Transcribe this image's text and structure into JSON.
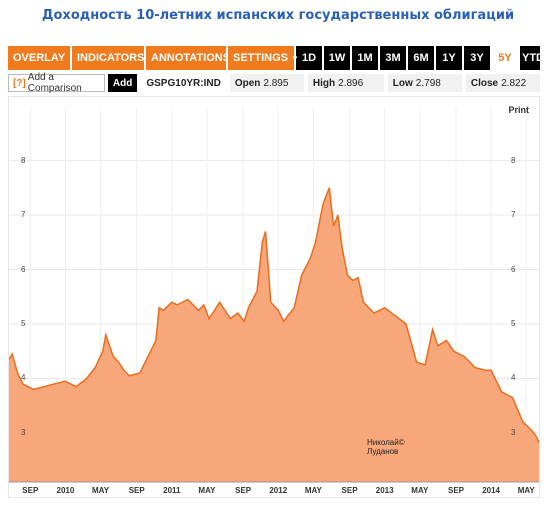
{
  "title": "Доходность 10-летних испанских государственных облигаций",
  "toolbar": {
    "menus": [
      "OVERLAY",
      "INDICATORS",
      "ANNOTATIONS",
      "SETTINGS"
    ],
    "ranges": [
      "1D",
      "1W",
      "1M",
      "3M",
      "6M",
      "1Y",
      "3Y",
      "5Y",
      "YTD"
    ],
    "active_range": "5Y",
    "accent": "#f07a1e"
  },
  "infobar": {
    "compare_hint": "[?]",
    "compare_label": "Add a Comparison",
    "add_label": "Add",
    "ticker": "GSPG10YR:IND",
    "open_label": "Open",
    "open_value": "2.895",
    "high_label": "High",
    "high_value": "2.896",
    "low_label": "Low",
    "low_value": "2.798",
    "close_label": "Close",
    "close_value": "2.822"
  },
  "print_label": "Print",
  "watermark": {
    "line1": "Николай",
    "line2": "Луданов"
  },
  "chart_data": {
    "type": "area",
    "title": "Доходность 10-летних испанских государственных облигаций",
    "xlabel": "",
    "ylabel": "",
    "ylim": [
      2.1,
      8.8
    ],
    "yticks": [
      3,
      4,
      5,
      6,
      7,
      8
    ],
    "xlim": [
      2009.47,
      2014.45
    ],
    "xticks": [
      {
        "x": 2009.67,
        "label": "SEP"
      },
      {
        "x": 2010.0,
        "label": "2010"
      },
      {
        "x": 2010.33,
        "label": "MAY"
      },
      {
        "x": 2010.67,
        "label": "SEP"
      },
      {
        "x": 2011.0,
        "label": "2011"
      },
      {
        "x": 2011.33,
        "label": "MAY"
      },
      {
        "x": 2011.67,
        "label": "SEP"
      },
      {
        "x": 2012.0,
        "label": "2012"
      },
      {
        "x": 2012.33,
        "label": "MAY"
      },
      {
        "x": 2012.67,
        "label": "SEP"
      },
      {
        "x": 2013.0,
        "label": "2013"
      },
      {
        "x": 2013.33,
        "label": "MAY"
      },
      {
        "x": 2013.67,
        "label": "SEP"
      },
      {
        "x": 2014.0,
        "label": "2014"
      },
      {
        "x": 2014.33,
        "label": "MAY"
      }
    ],
    "grid": true,
    "fill_color": "#f8a77b",
    "line_color": "#ea6c1c",
    "x": [
      2009.47,
      2009.5,
      2009.55,
      2009.6,
      2009.7,
      2009.8,
      2009.9,
      2010.0,
      2010.1,
      2010.2,
      2010.28,
      2010.35,
      2010.38,
      2010.45,
      2010.5,
      2010.55,
      2010.6,
      2010.7,
      2010.8,
      2010.85,
      2010.88,
      2010.92,
      2011.0,
      2011.05,
      2011.15,
      2011.25,
      2011.3,
      2011.35,
      2011.45,
      2011.55,
      2011.62,
      2011.68,
      2011.72,
      2011.8,
      2011.85,
      2011.88,
      2011.93,
      2012.0,
      2012.05,
      2012.15,
      2012.22,
      2012.3,
      2012.35,
      2012.42,
      2012.48,
      2012.52,
      2012.56,
      2012.6,
      2012.65,
      2012.7,
      2012.75,
      2012.8,
      2012.9,
      2013.0,
      2013.1,
      2013.2,
      2013.3,
      2013.38,
      2013.45,
      2013.5,
      2013.58,
      2013.65,
      2013.75,
      2013.85,
      2013.95,
      2014.0,
      2014.05,
      2014.1,
      2014.2,
      2014.3,
      2014.38,
      2014.42,
      2014.45
    ],
    "y": [
      4.35,
      4.45,
      4.1,
      3.9,
      3.8,
      3.85,
      3.9,
      3.95,
      3.85,
      4.0,
      4.2,
      4.5,
      4.8,
      4.4,
      4.3,
      4.15,
      4.05,
      4.1,
      4.5,
      4.7,
      5.3,
      5.25,
      5.4,
      5.35,
      5.45,
      5.25,
      5.35,
      5.1,
      5.4,
      5.1,
      5.2,
      5.05,
      5.3,
      5.6,
      6.5,
      6.7,
      5.4,
      5.25,
      5.05,
      5.3,
      5.9,
      6.2,
      6.5,
      7.2,
      7.5,
      6.8,
      7.0,
      6.4,
      5.9,
      5.8,
      5.85,
      5.4,
      5.2,
      5.3,
      5.15,
      5.0,
      4.3,
      4.25,
      4.9,
      4.6,
      4.7,
      4.5,
      4.4,
      4.2,
      4.15,
      4.15,
      3.95,
      3.75,
      3.65,
      3.2,
      3.05,
      2.95,
      2.82
    ]
  }
}
